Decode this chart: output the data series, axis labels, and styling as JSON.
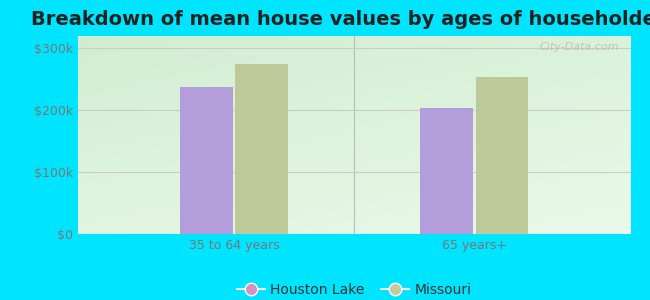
{
  "title": "Breakdown of mean house values by ages of householders",
  "categories": [
    "35 to 64 years",
    "65 years+"
  ],
  "series": {
    "Houston Lake": [
      238000,
      203000
    ],
    "Missouri": [
      275000,
      253000
    ]
  },
  "bar_colors": {
    "Houston Lake": "#b39ddb",
    "Missouri": "#bec99a"
  },
  "legend_colors": {
    "Houston Lake": "#d48fc8",
    "Missouri": "#c5cc9a"
  },
  "background_color": "#00e5ff",
  "ylim": [
    0,
    320000
  ],
  "yticks": [
    0,
    100000,
    200000,
    300000
  ],
  "ytick_labels": [
    "$0",
    "$100k",
    "$200k",
    "$300k"
  ],
  "bar_width": 0.22,
  "title_fontsize": 14,
  "watermark": "City-Data.com"
}
